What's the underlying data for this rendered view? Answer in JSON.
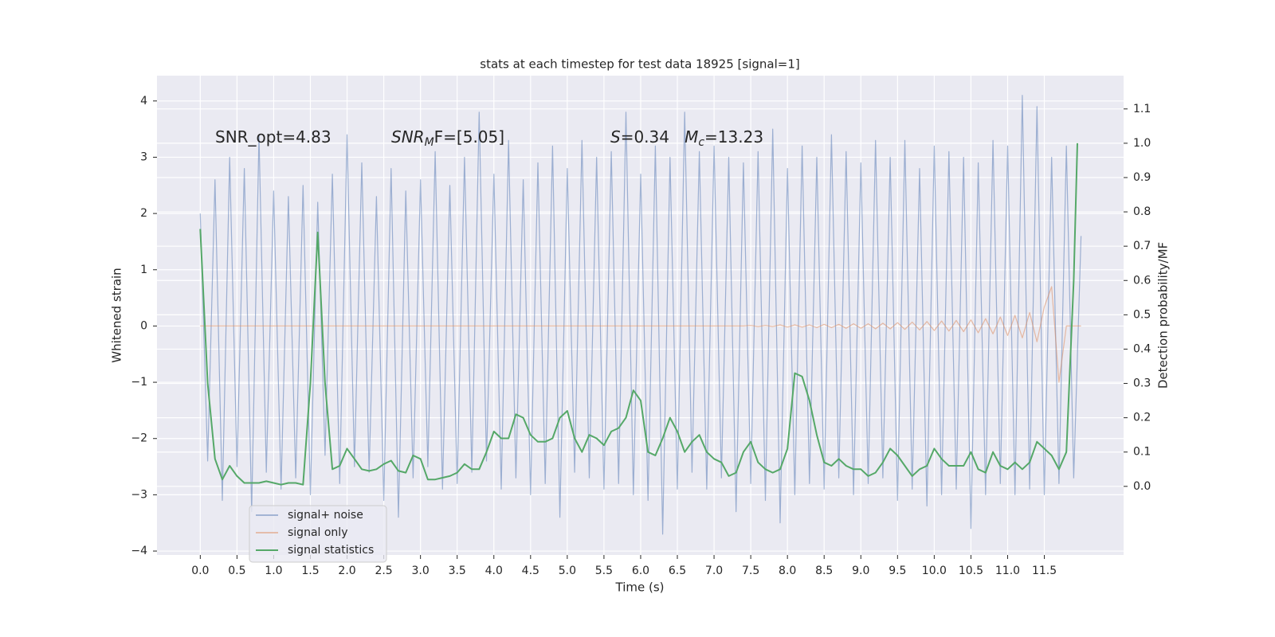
{
  "chart_data": {
    "type": "line",
    "title": "stats at each timestep for test data 18925 [signal=1]",
    "xlabel": "Time (s)",
    "ylabel": "Whitened strain",
    "y2label": "Detection probability/MF",
    "annotations": [
      [
        "SNR_opt=4.83"
      ],
      [
        "SNR",
        "M",
        "F=[5.05]"
      ],
      [
        "S",
        "=0.34   ",
        "M",
        "c",
        "=13.23"
      ]
    ],
    "xlim": [
      -0.59,
      12.58
    ],
    "ylim": [
      -4.07,
      4.45
    ],
    "y2lim": [
      -0.2,
      1.197
    ],
    "xticks": [
      {
        "value": 0,
        "label": "0.0"
      },
      {
        "value": 0.5,
        "label": "0.5"
      },
      {
        "value": 1,
        "label": "1.0"
      },
      {
        "value": 1.5,
        "label": "1.5"
      },
      {
        "value": 2,
        "label": "2.0"
      },
      {
        "value": 2.5,
        "label": "2.5"
      },
      {
        "value": 3,
        "label": "3.0"
      },
      {
        "value": 3.5,
        "label": "3.5"
      },
      {
        "value": 4,
        "label": "4.0"
      },
      {
        "value": 4.5,
        "label": "4.5"
      },
      {
        "value": 5,
        "label": "5.0"
      },
      {
        "value": 5.5,
        "label": "5.5"
      },
      {
        "value": 6,
        "label": "6.0"
      },
      {
        "value": 6.5,
        "label": "6.5"
      },
      {
        "value": 7,
        "label": "7.0"
      },
      {
        "value": 7.5,
        "label": "7.5"
      },
      {
        "value": 8,
        "label": "8.0"
      },
      {
        "value": 8.5,
        "label": "8.5"
      },
      {
        "value": 9,
        "label": "9.0"
      },
      {
        "value": 9.5,
        "label": "9.5"
      },
      {
        "value": 10,
        "label": "10.0"
      },
      {
        "value": 10.5,
        "label": "10.5"
      },
      {
        "value": 11,
        "label": "11.0"
      },
      {
        "value": 11.5,
        "label": "11.5"
      }
    ],
    "yticks": [
      {
        "value": -4,
        "label": "−4"
      },
      {
        "value": -3,
        "label": "−3"
      },
      {
        "value": -2,
        "label": "−2"
      },
      {
        "value": -1,
        "label": "−1"
      },
      0,
      1,
      2,
      3,
      4
    ],
    "y2ticks": [
      {
        "value": 0,
        "label": "0.0"
      },
      {
        "value": 0.1,
        "label": "0.1"
      },
      {
        "value": 0.2,
        "label": "0.2"
      },
      {
        "value": 0.3,
        "label": "0.3"
      },
      {
        "value": 0.4,
        "label": "0.4"
      },
      {
        "value": 0.5,
        "label": "0.5"
      },
      {
        "value": 0.6,
        "label": "0.6"
      },
      {
        "value": 0.7,
        "label": "0.7"
      },
      {
        "value": 0.8,
        "label": "0.8"
      },
      {
        "value": 0.9,
        "label": "0.9"
      },
      {
        "value": 1,
        "label": "1.0"
      },
      {
        "value": 1.1,
        "label": "1.1"
      }
    ],
    "grid": true,
    "legend": "lower left",
    "series": [
      {
        "name": "signal+ noise",
        "color": "#4c72b0",
        "x": [
          0,
          0.1,
          0.2,
          0.3,
          0.4,
          0.5,
          0.6,
          0.7,
          0.8,
          0.9,
          1,
          1.1,
          1.2,
          1.3,
          1.4,
          1.5,
          1.6,
          1.7,
          1.8,
          1.9,
          2,
          2.1,
          2.2,
          2.3,
          2.4,
          2.5,
          2.6,
          2.7,
          2.8,
          2.9,
          3,
          3.1,
          3.2,
          3.3,
          3.4,
          3.5,
          3.6,
          3.7,
          3.8,
          3.9,
          4,
          4.1,
          4.2,
          4.3,
          4.4,
          4.5,
          4.6,
          4.7,
          4.8,
          4.9,
          5,
          5.1,
          5.2,
          5.3,
          5.4,
          5.5,
          5.6,
          5.7,
          5.8,
          5.9,
          6,
          6.1,
          6.2,
          6.3,
          6.4,
          6.5,
          6.6,
          6.7,
          6.8,
          6.9,
          7,
          7.1,
          7.2,
          7.3,
          7.4,
          7.5,
          7.6,
          7.7,
          7.8,
          7.9,
          8,
          8.1,
          8.2,
          8.3,
          8.4,
          8.5,
          8.6,
          8.7,
          8.8,
          8.9,
          9,
          9.1,
          9.2,
          9.3,
          9.4,
          9.5,
          9.6,
          9.7,
          9.8,
          9.9,
          10,
          10.1,
          10.2,
          10.3,
          10.4,
          10.5,
          10.6,
          10.7,
          10.8,
          10.9,
          11,
          11.1,
          11.2,
          11.3,
          11.4,
          11.5,
          11.6,
          11.7,
          11.8,
          11.9,
          12
        ],
        "values": [
          2.0,
          -2.4,
          2.6,
          -3.1,
          3.0,
          -2.5,
          2.8,
          -3.3,
          3.4,
          -2.6,
          2.4,
          -2.9,
          2.3,
          -2.7,
          2.5,
          -3.0,
          2.2,
          -2.3,
          2.7,
          -2.8,
          3.4,
          -2.5,
          2.9,
          -2.6,
          2.3,
          -3.1,
          2.8,
          -3.4,
          2.4,
          -2.7,
          2.6,
          -2.5,
          3.1,
          -2.9,
          2.5,
          -2.8,
          3.0,
          -2.6,
          3.8,
          -2.4,
          2.7,
          -2.9,
          3.3,
          -2.7,
          2.6,
          -3.0,
          2.9,
          -2.8,
          3.2,
          -3.4,
          2.8,
          -2.6,
          3.3,
          -2.7,
          3.0,
          -2.9,
          3.1,
          -2.8,
          3.8,
          -3.0,
          2.7,
          -3.1,
          3.2,
          -3.7,
          3.0,
          -2.9,
          3.8,
          -2.6,
          3.1,
          -2.9,
          3.2,
          -2.7,
          3.0,
          -3.3,
          2.9,
          -2.8,
          3.1,
          -3.1,
          3.5,
          -3.5,
          2.8,
          -3.0,
          3.2,
          -2.8,
          3.0,
          -2.9,
          3.4,
          -2.7,
          3.1,
          -3.0,
          2.9,
          -2.8,
          3.3,
          -2.7,
          3.0,
          -3.1,
          3.3,
          -2.9,
          2.8,
          -3.2,
          3.2,
          -3.0,
          3.1,
          -2.9,
          3.0,
          -3.6,
          2.9,
          -3.0,
          3.3,
          -2.8,
          3.2,
          -3.0,
          4.1,
          -2.9,
          3.9,
          -3.0,
          3.0,
          -2.8,
          3.2,
          -2.7,
          1.6
        ]
      },
      {
        "name": "signal only",
        "color": "#dd8452",
        "x": [
          0,
          0.1,
          0.2,
          0.3,
          0.4,
          0.5,
          0.6,
          0.7,
          0.8,
          0.9,
          1,
          1.1,
          1.2,
          1.3,
          1.4,
          1.5,
          1.6,
          1.7,
          1.8,
          1.9,
          2,
          2.1,
          2.2,
          2.3,
          2.4,
          2.5,
          2.6,
          2.7,
          2.8,
          2.9,
          3,
          3.1,
          3.2,
          3.3,
          3.4,
          3.5,
          3.6,
          3.7,
          3.8,
          3.9,
          4,
          4.1,
          4.2,
          4.3,
          4.4,
          4.5,
          4.6,
          4.7,
          4.8,
          4.9,
          5,
          5.1,
          5.2,
          5.3,
          5.4,
          5.5,
          5.6,
          5.7,
          5.8,
          5.9,
          6,
          6.1,
          6.2,
          6.3,
          6.4,
          6.5,
          6.6,
          6.7,
          6.8,
          6.9,
          7,
          7.1,
          7.2,
          7.3,
          7.4,
          7.5,
          7.6,
          7.7,
          7.8,
          7.9,
          8,
          8.1,
          8.2,
          8.3,
          8.4,
          8.5,
          8.6,
          8.7,
          8.8,
          8.9,
          9,
          9.1,
          9.2,
          9.3,
          9.4,
          9.5,
          9.6,
          9.7,
          9.8,
          9.9,
          10,
          10.1,
          10.2,
          10.3,
          10.4,
          10.5,
          10.6,
          10.7,
          10.8,
          10.9,
          11,
          11.1,
          11.2,
          11.3,
          11.4,
          11.5,
          11.6,
          11.7,
          11.8,
          11.9,
          12
        ],
        "values": [
          0,
          0,
          0,
          0,
          0,
          0,
          0,
          0,
          0,
          0,
          0,
          0,
          0,
          0,
          0,
          0,
          0,
          0,
          0,
          0,
          0,
          0,
          0,
          0,
          0,
          0,
          0,
          0,
          0,
          0,
          0,
          0,
          0,
          0,
          0,
          0,
          0,
          0,
          0,
          0,
          0,
          0,
          0,
          0,
          0,
          0,
          0,
          0,
          0,
          0,
          0,
          0,
          0,
          0,
          0,
          0,
          0,
          0,
          0,
          0,
          0,
          0,
          0,
          0,
          0,
          0,
          0,
          0,
          0,
          0,
          0,
          0,
          0,
          0,
          0,
          0.01,
          -0.01,
          0.01,
          -0.01,
          0.02,
          -0.02,
          0.02,
          -0.02,
          0.02,
          -0.03,
          0.03,
          -0.03,
          0.03,
          -0.04,
          0.04,
          -0.04,
          0.04,
          -0.05,
          0.05,
          -0.05,
          0.06,
          -0.06,
          0.07,
          -0.07,
          0.08,
          -0.08,
          0.09,
          -0.09,
          0.1,
          -0.1,
          0.11,
          -0.12,
          0.13,
          -0.14,
          0.16,
          -0.17,
          0.19,
          -0.21,
          0.24,
          -0.28,
          0.34,
          0.7,
          -1.0,
          0,
          0,
          0
        ]
      },
      {
        "name": "signal statistics",
        "color": "#55a868",
        "axis": "y2",
        "x": [
          0,
          0.1,
          0.2,
          0.3,
          0.4,
          0.5,
          0.6,
          0.7,
          0.8,
          0.9,
          1,
          1.1,
          1.2,
          1.3,
          1.4,
          1.5,
          1.6,
          1.7,
          1.8,
          1.9,
          2,
          2.1,
          2.2,
          2.3,
          2.4,
          2.5,
          2.6,
          2.7,
          2.8,
          2.9,
          3,
          3.1,
          3.2,
          3.3,
          3.4,
          3.5,
          3.6,
          3.7,
          3.8,
          3.9,
          4,
          4.1,
          4.2,
          4.3,
          4.4,
          4.5,
          4.6,
          4.7,
          4.8,
          4.9,
          5,
          5.1,
          5.2,
          5.3,
          5.4,
          5.5,
          5.6,
          5.7,
          5.8,
          5.9,
          6,
          6.1,
          6.2,
          6.3,
          6.4,
          6.5,
          6.6,
          6.7,
          6.8,
          6.9,
          7,
          7.1,
          7.2,
          7.3,
          7.4,
          7.5,
          7.6,
          7.7,
          7.8,
          7.9,
          8,
          8.1,
          8.2,
          8.3,
          8.4,
          8.5,
          8.6,
          8.7,
          8.8,
          8.9,
          9,
          9.1,
          9.2,
          9.3,
          9.4,
          9.5,
          9.6,
          9.7,
          9.8,
          9.9,
          10,
          10.1,
          10.2,
          10.3,
          10.4,
          10.5,
          10.6,
          10.7,
          10.8,
          10.9,
          11,
          11.1,
          11.2,
          11.3,
          11.4,
          11.5,
          11.6,
          11.7,
          11.8,
          11.9,
          11.95
        ],
        "values": [
          0.75,
          0.3,
          0.08,
          0.02,
          0.06,
          0.03,
          0.01,
          0.01,
          0.01,
          0.015,
          0.01,
          0.005,
          0.01,
          0.01,
          0.005,
          0.3,
          0.74,
          0.3,
          0.05,
          0.06,
          0.11,
          0.08,
          0.05,
          0.045,
          0.05,
          0.065,
          0.075,
          0.045,
          0.04,
          0.09,
          0.08,
          0.02,
          0.02,
          0.025,
          0.03,
          0.04,
          0.065,
          0.05,
          0.05,
          0.1,
          0.16,
          0.14,
          0.14,
          0.21,
          0.2,
          0.15,
          0.13,
          0.13,
          0.14,
          0.2,
          0.22,
          0.14,
          0.1,
          0.15,
          0.14,
          0.12,
          0.16,
          0.17,
          0.2,
          0.28,
          0.25,
          0.1,
          0.09,
          0.14,
          0.2,
          0.16,
          0.1,
          0.13,
          0.15,
          0.1,
          0.08,
          0.07,
          0.03,
          0.04,
          0.1,
          0.13,
          0.07,
          0.05,
          0.04,
          0.05,
          0.11,
          0.33,
          0.32,
          0.25,
          0.15,
          0.07,
          0.06,
          0.08,
          0.06,
          0.05,
          0.05,
          0.03,
          0.04,
          0.07,
          0.11,
          0.09,
          0.06,
          0.03,
          0.05,
          0.06,
          0.11,
          0.08,
          0.06,
          0.06,
          0.06,
          0.1,
          0.05,
          0.04,
          0.1,
          0.06,
          0.05,
          0.07,
          0.05,
          0.07,
          0.13,
          0.11,
          0.09,
          0.05,
          0.1,
          0.6,
          1.0
        ]
      }
    ]
  }
}
